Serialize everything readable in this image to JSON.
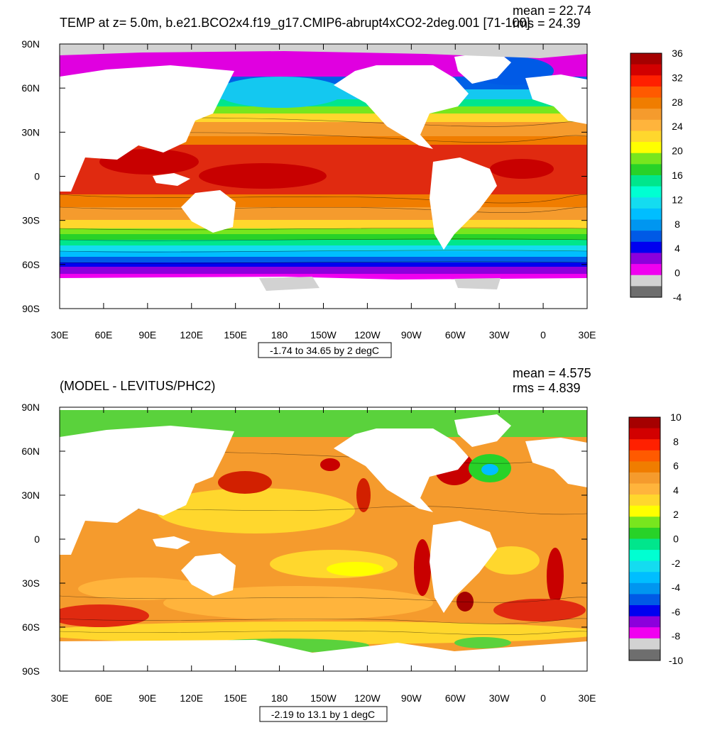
{
  "panels": [
    {
      "id": "temp",
      "title": "TEMP at z=   5.0m, b.e21.BCO2x4.f19_g17.CMIP6-abrupt4xCO2-2deg.001 [71-100]",
      "stats": [
        "mean = 22.74",
        "rms = 24.39"
      ],
      "range_label": "-1.74 to 34.65 by 2 degC",
      "lat_labels": [
        "90N",
        "60N",
        "30N",
        "0",
        "30S",
        "60S",
        "90S"
      ],
      "lon_labels": [
        "30E",
        "60E",
        "90E",
        "120E",
        "150E",
        "180",
        "150W",
        "120W",
        "90W",
        "60W",
        "30W",
        "0",
        "30E"
      ],
      "colorbar": {
        "labels": [
          "36",
          "32",
          "28",
          "24",
          "20",
          "16",
          "12",
          "8",
          "4",
          "0",
          "-4"
        ],
        "colors": [
          "#a50000",
          "#d20000",
          "#ff2000",
          "#ff5a00",
          "#f07d00",
          "#f59b2d",
          "#ffb43c",
          "#ffd72d",
          "#ffff00",
          "#78e61e",
          "#28d228",
          "#00e68c",
          "#00ffd2",
          "#14dcf0",
          "#00beff",
          "#0096f0",
          "#005ae6",
          "#0000f0",
          "#8c00dc",
          "#f000f0",
          "#d2d2d2",
          "#6e6e6e"
        ]
      }
    },
    {
      "id": "diff",
      "title": "(MODEL - LEVITUS/PHC2)",
      "stats": [
        "mean = 4.575",
        "rms = 4.839"
      ],
      "range_label": "-2.19 to 13.1 by 1 degC",
      "lat_labels": [
        "90N",
        "60N",
        "30N",
        "0",
        "30S",
        "60S",
        "90S"
      ],
      "lon_labels": [
        "30E",
        "60E",
        "90E",
        "120E",
        "150E",
        "180",
        "150W",
        "120W",
        "90W",
        "60W",
        "30W",
        "0",
        "30E"
      ],
      "colorbar": {
        "labels": [
          "10",
          "8",
          "6",
          "4",
          "2",
          "0",
          "-2",
          "-4",
          "-6",
          "-8",
          "-10"
        ],
        "colors": [
          "#a50000",
          "#d20000",
          "#ff2000",
          "#ff5a00",
          "#f07d00",
          "#f59b2d",
          "#ffb43c",
          "#ffd72d",
          "#ffff00",
          "#78e61e",
          "#28d228",
          "#00e68c",
          "#00ffd2",
          "#14dcf0",
          "#00beff",
          "#0096f0",
          "#005ae6",
          "#0000f0",
          "#8c00dc",
          "#f000f0",
          "#d2d2d2",
          "#6e6e6e"
        ]
      }
    }
  ]
}
